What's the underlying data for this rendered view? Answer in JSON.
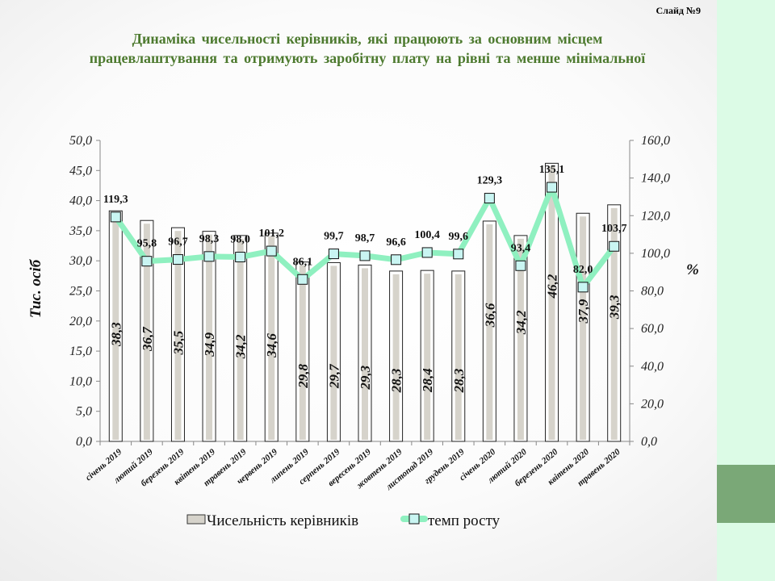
{
  "slide_label": "Слайд №9",
  "title_line1": "Динаміка чисельності керівників, які працюють за основним місцем",
  "title_line2": "працевлаштування та отримують заробітну плату на рівні та менше мінімальної",
  "colors": {
    "bar_fill": "#d6d3cb",
    "line": "#8ff0c0",
    "marker_fill": "#c9f5f2",
    "title": "#4d7a2f",
    "side_panel": "#dcfbe6",
    "side_block": "#7aa877"
  },
  "chart_data": {
    "type": "bar+line",
    "categories": [
      "січень 2019",
      "лютий 2019",
      "березень 2019",
      "квітень 2019",
      "травень 2019",
      "червень 2019",
      "липень 2019",
      "серпень 2019",
      "вересень 2019",
      "жовтень 2019",
      "листопад 2019",
      "грудень 2019",
      "січень 2020",
      "лютий 2020",
      "березень 2020",
      "квітень 2020",
      "травень 2020"
    ],
    "series": [
      {
        "name": "Чисельність керівників",
        "type": "bar",
        "axis": "left",
        "values": [
          38.3,
          36.7,
          35.5,
          34.9,
          34.2,
          34.6,
          29.8,
          29.7,
          29.3,
          28.3,
          28.4,
          28.3,
          36.6,
          34.2,
          46.2,
          37.9,
          39.3
        ],
        "labels": [
          "38,3",
          "36,7",
          "35,5",
          "34,9",
          "34,2",
          "34,6",
          "29,8",
          "29,7",
          "29,3",
          "28,3",
          "28,4",
          "28,3",
          "36,6",
          "34,2",
          "46,2",
          "37,9",
          "39,3"
        ]
      },
      {
        "name": "темп росту",
        "type": "line",
        "axis": "right",
        "values": [
          119.3,
          95.8,
          96.7,
          98.3,
          98.0,
          101.2,
          86.1,
          99.7,
          98.7,
          96.6,
          100.4,
          99.6,
          129.3,
          93.4,
          135.1,
          82.0,
          103.7
        ],
        "labels": [
          "119,3",
          "95,8",
          "96,7",
          "98,3",
          "98,0",
          "101,2",
          "86,1",
          "99,7",
          "98,7",
          "96,6",
          "100,4",
          "99,6",
          "129,3",
          "93,4",
          "135,1",
          "82,0",
          "103,7"
        ]
      }
    ],
    "ylabel": "Тис. осіб",
    "y2label": "%",
    "ylim": [
      0,
      50
    ],
    "y2lim": [
      0,
      160
    ],
    "yticks": [
      "0,0",
      "5,0",
      "10,0",
      "15,0",
      "20,0",
      "25,0",
      "30,0",
      "35,0",
      "40,0",
      "45,0",
      "50,0"
    ],
    "y2ticks": [
      "0,0",
      "20,0",
      "40,0",
      "60,0",
      "80,0",
      "100,0",
      "120,0",
      "140,0",
      "160,0"
    ],
    "legend": "bottom"
  }
}
